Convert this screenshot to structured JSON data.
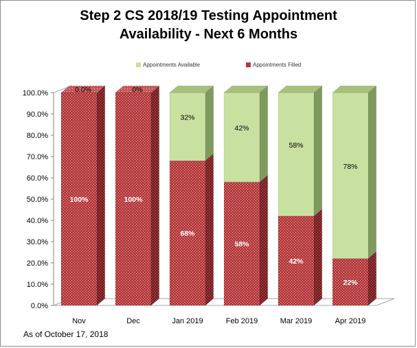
{
  "title_lines": [
    "Step 2 CS  2018/19 Testing Appointment",
    "Availability - Next 6 Months"
  ],
  "footnote": "As of October 17, 2018",
  "chart_data": {
    "type": "bar",
    "stacked": true,
    "three_d": true,
    "categories": [
      "Nov",
      "Dec",
      "Jan 2019",
      "Feb 2019",
      "Mar 2019",
      "Apr 2019"
    ],
    "series": [
      {
        "name": "Appointments Filled",
        "values": [
          100,
          100,
          68,
          58,
          42,
          22
        ],
        "labels": [
          "100%",
          "100%",
          "68%",
          "58%",
          "42%",
          "22%"
        ],
        "color": "#b5393c"
      },
      {
        "name": "Appointments Available",
        "values": [
          0,
          0,
          32,
          42,
          58,
          78
        ],
        "labels": [
          "0.0%",
          "0%",
          "32%",
          "42%",
          "58%",
          "78%"
        ],
        "color": "#c8e0a0"
      }
    ],
    "ylim": [
      0,
      100
    ],
    "yticks": [
      "0.0%",
      "10.0%",
      "20.0%",
      "30.0%",
      "40.0%",
      "50.0%",
      "60.0%",
      "70.0%",
      "80.0%",
      "90.0%",
      "100.0%"
    ],
    "grid": false,
    "legend_position": "top"
  }
}
